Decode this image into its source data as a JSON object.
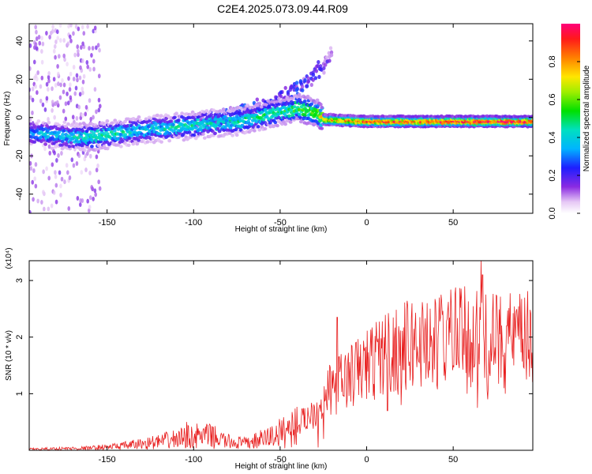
{
  "title": "C2E4.2025.073.09.44.R09",
  "colors": {
    "trace": "#e82020",
    "axis": "#000000",
    "background": "#ffffff"
  },
  "chart_data": [
    {
      "type": "heatmap",
      "xlabel": "Height of straight line (km)",
      "ylabel": "Frequency (Hz)",
      "xlim": [
        -195,
        96
      ],
      "ylim": [
        -50,
        49
      ],
      "xticks": [
        -150,
        -100,
        -50,
        0,
        50
      ],
      "yticks": [
        -40,
        -20,
        0,
        20,
        40
      ],
      "colorbar": {
        "label": "Normalized spectral amplitude",
        "range": [
          0.0,
          1.0
        ],
        "ticks": [
          0.0,
          0.2,
          0.4,
          0.6,
          0.8
        ],
        "colormap": "rainbow (white → violet → blue → cyan → green → yellow → red)"
      },
      "ridge": {
        "description": "main spectral ridge: frequency vs height",
        "x": [
          -195,
          -170,
          -160,
          -150,
          -125,
          -100,
          -75,
          -50,
          -40,
          -30,
          -25,
          0,
          25,
          50,
          75,
          96
        ],
        "y": [
          -8,
          -10,
          -10,
          -9,
          -6,
          -4,
          -2,
          3,
          5,
          3,
          -1,
          -2,
          -2,
          -2,
          -2,
          -2
        ],
        "amplitude": [
          0.35,
          0.4,
          0.5,
          0.45,
          0.4,
          0.45,
          0.45,
          0.5,
          0.55,
          0.6,
          0.75,
          0.85,
          0.9,
          0.92,
          0.95,
          0.95
        ]
      },
      "upper_branch": {
        "description": "secondary branch rising to higher frequency",
        "x": [
          -100,
          -75,
          -50,
          -35,
          -25,
          -20
        ],
        "y": [
          -2,
          2,
          10,
          18,
          28,
          34
        ],
        "amplitude": [
          0.2,
          0.2,
          0.2,
          0.18,
          0.15,
          0.1
        ]
      },
      "noise_region": {
        "x_range": [
          -195,
          -155
        ],
        "y_range": [
          -50,
          49
        ],
        "amplitude": 0.08
      }
    },
    {
      "type": "line",
      "xlabel": "Height of straight line (km)",
      "ylabel": "SNR (10 * v/v)",
      "yscale_label": "(x10⁴)",
      "xlim": [
        -195,
        96
      ],
      "ylim": [
        0,
        3.35
      ],
      "xticks": [
        -150,
        -100,
        -50,
        0,
        50
      ],
      "yticks": [
        1,
        2,
        3
      ],
      "series": [
        {
          "color": "#e82020",
          "envelope": {
            "x": [
              -195,
              -160,
              -140,
              -120,
              -100,
              -90,
              -80,
              -70,
              -60,
              -50,
              -40,
              -30,
              -20,
              -10,
              0,
              10,
              20,
              30,
              40,
              50,
              60,
              70,
              80,
              90,
              96
            ],
            "y": [
              0.02,
              0.04,
              0.08,
              0.15,
              0.25,
              0.25,
              0.15,
              0.12,
              0.2,
              0.3,
              0.45,
              0.7,
              1.1,
              1.3,
              1.5,
              1.7,
              1.8,
              1.9,
              1.9,
              2.0,
              2.0,
              1.9,
              1.95,
              1.95,
              1.95
            ]
          },
          "peaks": {
            "x": [
              -104,
              -17,
              -20,
              -27,
              10,
              35,
              43,
              49,
              57,
              66,
              67,
              81
            ],
            "y": [
              0.5,
              2.35,
              1.4,
              0.8,
              2.0,
              2.6,
              2.75,
              2.55,
              2.35,
              3.35,
              3.1,
              2.2
            ]
          },
          "dips": {
            "x": [
              -28,
              -25,
              12,
              20,
              38,
              50,
              58,
              64,
              70,
              80
            ],
            "y": [
              0.05,
              0.2,
              0.7,
              0.8,
              1.2,
              1.5,
              1.0,
              0.75,
              0.9,
              1.0
            ]
          }
        }
      ]
    }
  ]
}
